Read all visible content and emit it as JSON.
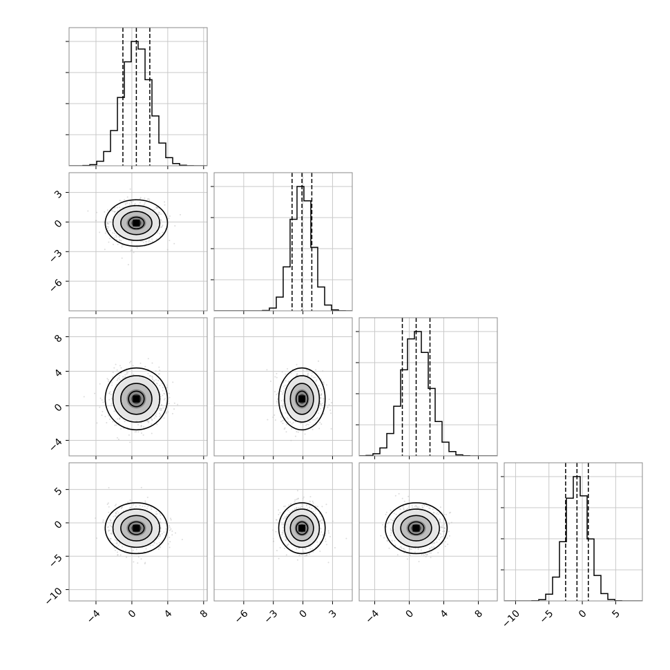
{
  "chart_data": {
    "type": "corner",
    "grid": true,
    "title": "",
    "variables": [
      {
        "index": 0,
        "range": [
          -7,
          8.4
        ],
        "ticks": [
          -4,
          0,
          4,
          8
        ],
        "tick_labels": [
          "−4",
          "0",
          "4",
          "8"
        ],
        "mean": 0.5,
        "sd": 1.55,
        "quantiles": [
          -1.0,
          0.5,
          2.0
        ]
      },
      {
        "index": 1,
        "range": [
          -9.0,
          5.0
        ],
        "ticks": [
          -6,
          -3,
          0,
          3
        ],
        "tick_labels": [
          "−6",
          "−3",
          "0",
          "3"
        ],
        "mean": -0.1,
        "sd": 1.05,
        "quantiles": [
          -1.1,
          -0.1,
          0.9
        ]
      },
      {
        "index": 2,
        "range": [
          -5.8,
          10.2
        ],
        "ticks": [
          -4,
          0,
          4,
          8
        ],
        "tick_labels": [
          "−4",
          "0",
          "4",
          "8"
        ],
        "mean": 0.8,
        "sd": 1.6,
        "quantiles": [
          -0.8,
          0.8,
          2.4
        ]
      },
      {
        "index": 3,
        "range": [
          -11.7,
          9.0
        ],
        "ticks": [
          -10,
          -5,
          0,
          5
        ],
        "tick_labels": [
          "−10",
          "−5",
          "0",
          "5"
        ],
        "mean": -0.8,
        "sd": 1.7,
        "quantiles": [
          -2.5,
          -0.8,
          0.9
        ]
      }
    ],
    "contour_levels_sigma": [
      0.5,
      1.0,
      1.5,
      2.0
    ],
    "histogram_bins": 20,
    "scatter_color": "#bdbdbd",
    "density_color": "#000000",
    "contour_color": "#000000",
    "quantile_line_style": "dashed"
  }
}
